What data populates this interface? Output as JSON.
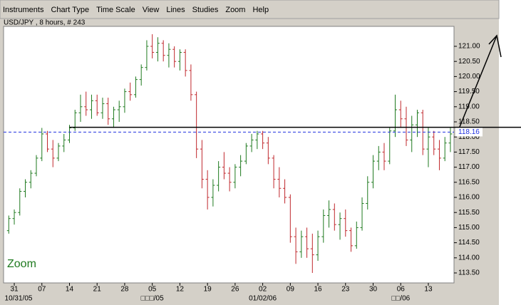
{
  "menu": [
    "Instruments",
    "Chart Type",
    "Time Scale",
    "View",
    "Lines",
    "Studies",
    "Zoom",
    "Help"
  ],
  "header": "USD/JPY , 8 hours, # 243",
  "chart_data": {
    "type": "ohlc",
    "up_color": "#1f7a1f",
    "down_color": "#c0282d",
    "open": [
      114.9,
      115.3,
      115.5,
      116.2,
      116.5,
      116.8,
      117.3,
      118.1,
      117.6,
      117.3,
      117.7,
      117.9,
      118.3,
      118.8,
      119.0,
      118.9,
      119.2,
      118.8,
      119.1,
      118.6,
      118.9,
      119.0,
      119.5,
      119.4,
      119.9,
      120.3,
      121.0,
      120.8,
      121.1,
      120.7,
      120.9,
      120.5,
      120.8,
      120.2,
      119.4,
      117.6,
      116.6,
      116.0,
      116.4,
      117.0,
      116.8,
      116.5,
      117.0,
      117.2,
      117.7,
      117.9,
      118.1,
      117.8,
      117.3,
      116.6,
      116.3,
      116.0,
      114.7,
      114.2,
      114.7,
      114.3,
      114.1,
      114.7,
      115.4,
      115.6,
      115.1,
      115.3,
      114.9,
      114.4,
      115.0,
      115.8,
      116.5,
      117.2,
      117.5,
      117.2,
      118.2,
      118.9,
      118.6,
      117.9,
      118.4,
      118.8,
      117.6,
      118.0,
      117.6,
      117.3,
      117.8
    ],
    "high": [
      115.4,
      115.6,
      116.3,
      116.6,
      116.9,
      117.4,
      118.3,
      118.2,
      117.9,
      117.8,
      118.1,
      118.4,
      118.9,
      119.4,
      119.5,
      119.4,
      119.4,
      119.3,
      119.3,
      119.0,
      119.2,
      119.6,
      119.8,
      120.0,
      120.4,
      121.2,
      121.4,
      121.3,
      121.2,
      121.1,
      121.0,
      120.9,
      120.9,
      120.4,
      119.5,
      117.9,
      116.9,
      116.6,
      117.2,
      117.5,
      117.0,
      117.1,
      117.4,
      117.8,
      118.1,
      118.2,
      118.2,
      118.0,
      117.4,
      117.0,
      116.6,
      116.1,
      115.0,
      114.9,
      115.0,
      114.8,
      114.9,
      115.6,
      115.9,
      115.8,
      115.5,
      115.6,
      115.0,
      115.2,
      116.0,
      116.7,
      117.4,
      117.7,
      117.8,
      118.3,
      119.4,
      119.2,
      119.0,
      118.7,
      118.9,
      118.9,
      118.3,
      118.2,
      117.9,
      118.0,
      118.3
    ],
    "low": [
      114.8,
      115.1,
      115.4,
      116.0,
      116.3,
      116.7,
      117.2,
      117.5,
      117.0,
      117.2,
      117.5,
      117.8,
      118.2,
      118.5,
      118.7,
      118.6,
      118.7,
      118.6,
      118.4,
      118.3,
      118.5,
      118.8,
      119.2,
      119.3,
      119.7,
      120.2,
      120.6,
      120.5,
      120.5,
      120.3,
      120.3,
      120.2,
      120.0,
      119.2,
      117.3,
      116.3,
      115.6,
      115.7,
      116.2,
      116.6,
      116.2,
      116.3,
      116.7,
      117.1,
      117.5,
      117.6,
      117.6,
      117.1,
      116.3,
      116.0,
      115.8,
      114.5,
      113.8,
      114.0,
      114.0,
      113.5,
      113.9,
      114.5,
      115.0,
      114.9,
      114.6,
      114.7,
      114.2,
      114.3,
      114.9,
      115.6,
      116.3,
      116.9,
      116.9,
      117.1,
      118.0,
      118.3,
      117.7,
      117.5,
      118.0,
      117.4,
      117.0,
      117.4,
      116.9,
      117.2,
      117.5
    ],
    "close": [
      115.3,
      115.5,
      116.2,
      116.5,
      116.8,
      117.3,
      118.1,
      117.6,
      117.3,
      117.7,
      117.9,
      118.3,
      118.8,
      119.0,
      118.9,
      119.2,
      118.8,
      119.1,
      118.6,
      118.9,
      119.0,
      119.5,
      119.4,
      119.9,
      120.3,
      121.0,
      120.8,
      121.1,
      120.7,
      120.9,
      120.5,
      120.8,
      120.2,
      119.4,
      117.6,
      116.6,
      116.0,
      116.4,
      117.0,
      116.8,
      116.5,
      117.0,
      117.2,
      117.7,
      117.9,
      118.1,
      117.8,
      117.3,
      116.6,
      116.3,
      116.0,
      114.7,
      114.2,
      114.7,
      114.3,
      114.1,
      114.7,
      115.4,
      115.6,
      115.1,
      115.3,
      114.9,
      114.4,
      115.0,
      115.8,
      116.5,
      117.2,
      117.5,
      117.2,
      118.2,
      118.9,
      118.6,
      117.9,
      118.4,
      118.8,
      117.6,
      118.0,
      117.6,
      117.3,
      117.8,
      118.1
    ],
    "ylim": [
      113.17,
      121.66
    ],
    "yticks": [
      {
        "value": 113.5,
        "label": "113.50"
      },
      {
        "value": 114,
        "label": "114.00"
      },
      {
        "value": 114.5,
        "label": "114.50"
      },
      {
        "value": 115,
        "label": "115.00"
      },
      {
        "value": 115.5,
        "label": "115.50"
      },
      {
        "value": 116,
        "label": "116.00"
      },
      {
        "value": 116.5,
        "label": "116.50"
      },
      {
        "value": 117,
        "label": "117.00"
      },
      {
        "value": 117.5,
        "label": "117.50"
      },
      {
        "value": 118,
        "label": "118.00"
      },
      {
        "value": 118.5,
        "label": "118.50"
      },
      {
        "value": 119,
        "label": "119.00"
      },
      {
        "value": 119.5,
        "label": "119.50"
      },
      {
        "value": 120,
        "label": "120.00"
      },
      {
        "value": 120.5,
        "label": "120.50"
      },
      {
        "value": 121,
        "label": "121.00"
      }
    ],
    "xlim": [
      -0.94,
      80.65
    ],
    "xticks": [
      {
        "value": 1,
        "label": "31"
      },
      {
        "value": 6,
        "label": "07"
      },
      {
        "value": 11,
        "label": "14"
      },
      {
        "value": 16,
        "label": "21"
      },
      {
        "value": 21,
        "label": "28"
      },
      {
        "value": 26,
        "label": "05"
      },
      {
        "value": 31,
        "label": "12"
      },
      {
        "value": 36,
        "label": "19"
      },
      {
        "value": 41,
        "label": "26"
      },
      {
        "value": 46,
        "label": "02"
      },
      {
        "value": 51,
        "label": "09"
      },
      {
        "value": 56,
        "label": "16"
      },
      {
        "value": 61,
        "label": "23"
      },
      {
        "value": 66,
        "label": "30"
      },
      {
        "value": 71,
        "label": "06"
      },
      {
        "value": 76,
        "label": "13"
      }
    ],
    "date_labels": [
      {
        "value": 1,
        "label": "10/31/05"
      },
      {
        "value": 26,
        "label": "□□□/05"
      },
      {
        "value": 46,
        "label": "01/02/06"
      },
      {
        "value": 71,
        "label": "□□/06"
      }
    ],
    "last_price": {
      "value": 118.16,
      "label": "118.16"
    },
    "horizontal_line": 118.32,
    "zoom_label": "Zoom"
  }
}
